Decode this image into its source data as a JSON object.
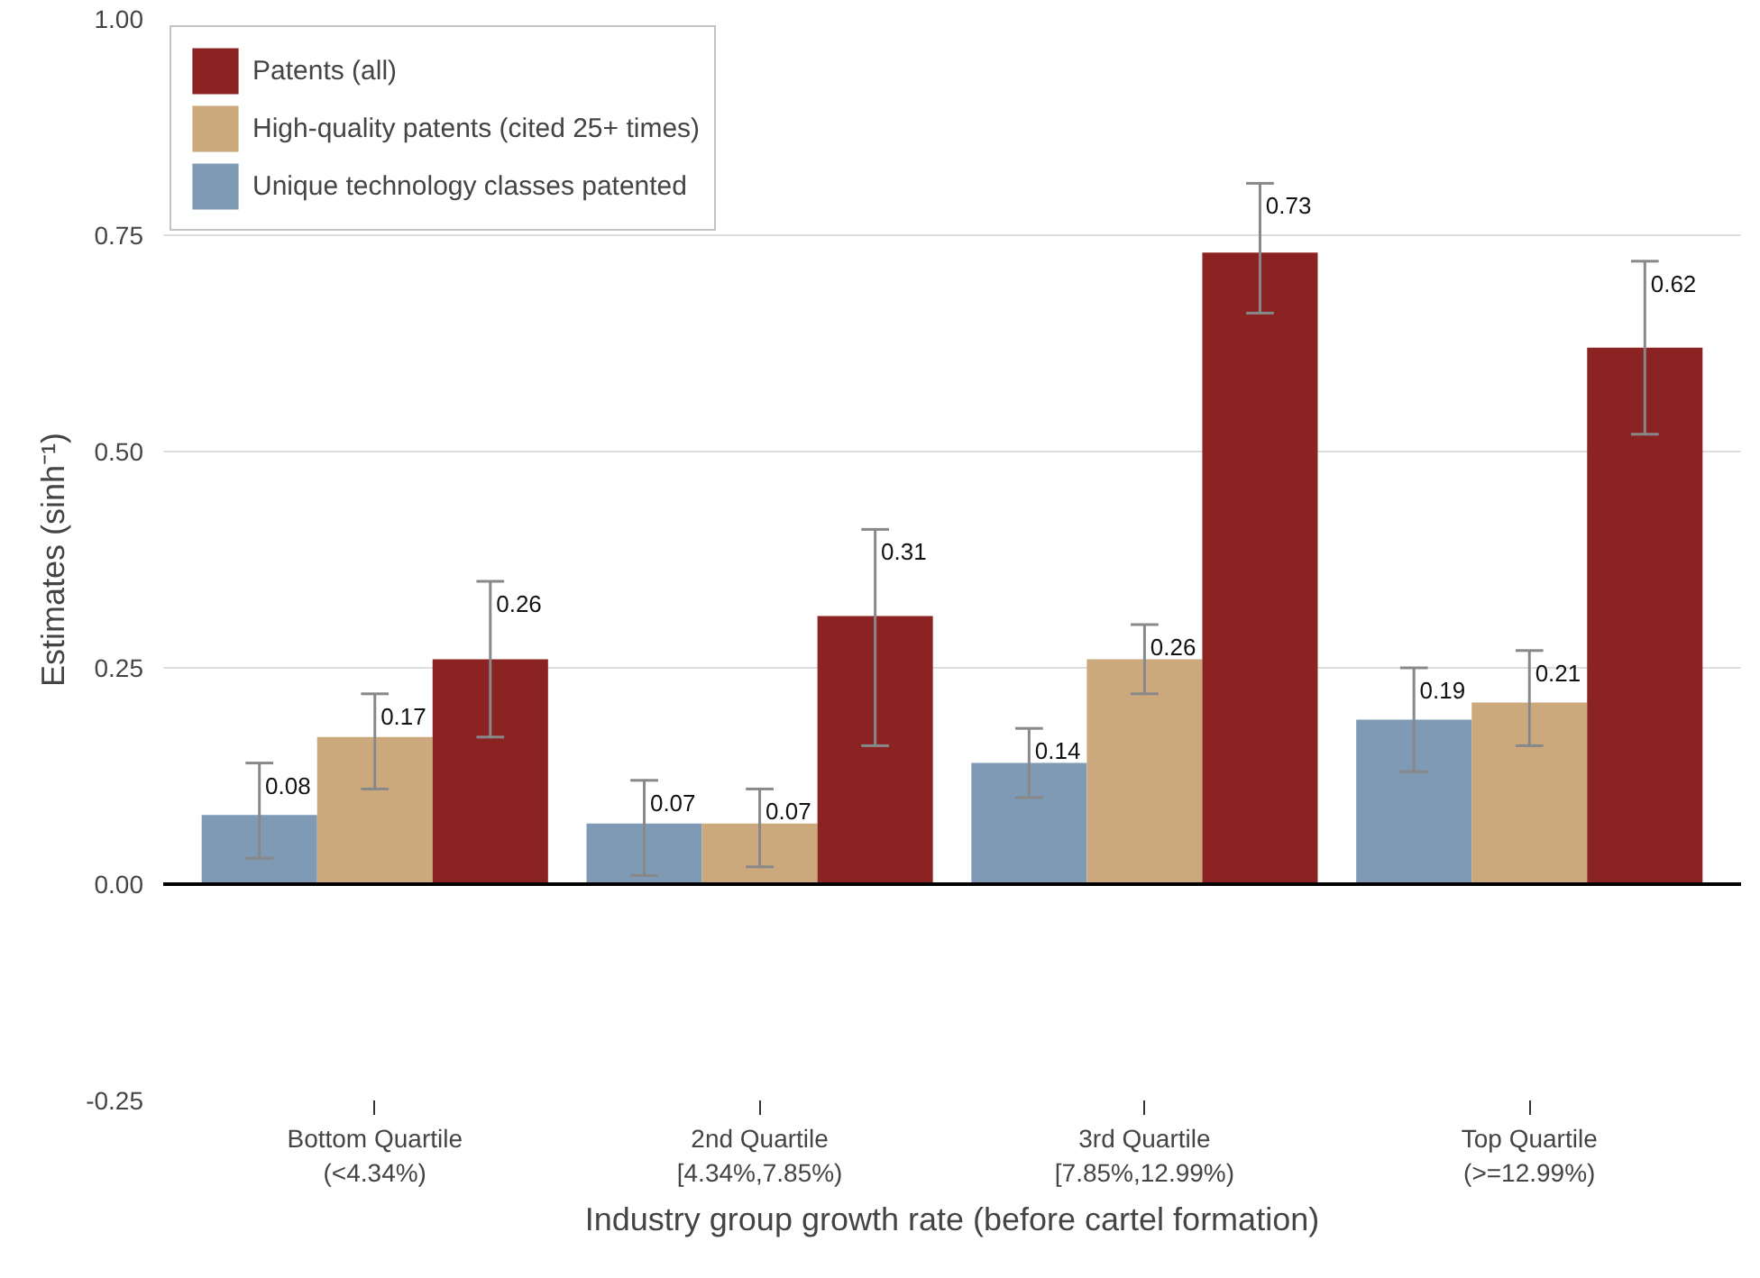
{
  "chart_data": {
    "type": "bar",
    "xlabel": "Industry group growth rate (before cartel formation)",
    "ylabel": "Estimates (sinh⁻¹)",
    "categories": [
      "Bottom Quartile\n(<4.34%)",
      "2nd Quartile\n[4.34%,7.85%)",
      "3rd Quartile\n[7.85%,12.99%)",
      "Top Quartile\n(>=12.99%)"
    ],
    "series": [
      {
        "name": "Unique technology classes patented",
        "color": "#7f9ab5",
        "values": [
          0.08,
          0.07,
          0.14,
          0.19
        ],
        "errors": [
          [
            0.03,
            0.14
          ],
          [
            0.01,
            0.12
          ],
          [
            0.1,
            0.18
          ],
          [
            0.13,
            0.25
          ]
        ]
      },
      {
        "name": "High-quality patents (cited 25+ times)",
        "color": "#cca97c",
        "values": [
          0.17,
          0.07,
          0.26,
          0.21
        ],
        "errors": [
          [
            0.11,
            0.22
          ],
          [
            0.02,
            0.11
          ],
          [
            0.22,
            0.3
          ],
          [
            0.16,
            0.27
          ]
        ]
      },
      {
        "name": "Patents (all)",
        "color": "#8b2323",
        "values": [
          0.26,
          0.31,
          0.73,
          0.62
        ],
        "errors": [
          [
            0.17,
            0.35
          ],
          [
            0.16,
            0.41
          ],
          [
            0.66,
            0.81
          ],
          [
            0.52,
            0.72
          ]
        ]
      }
    ],
    "ylim": [
      -0.25,
      1.0
    ],
    "yticks": [
      {
        "value": -0.25,
        "label": "-0.25"
      },
      {
        "value": 0,
        "label": "0.00"
      },
      {
        "value": 0.25,
        "label": "0.25"
      },
      {
        "value": 0.5,
        "label": "0.50"
      },
      0.75,
      {
        "value": 1,
        "label": "1.00"
      }
    ],
    "ref_lines": [
      {
        "axis": "y",
        "value": 0,
        "color": "#000000"
      }
    ],
    "grid": "y",
    "legend": "top left",
    "data_labels": true
  }
}
